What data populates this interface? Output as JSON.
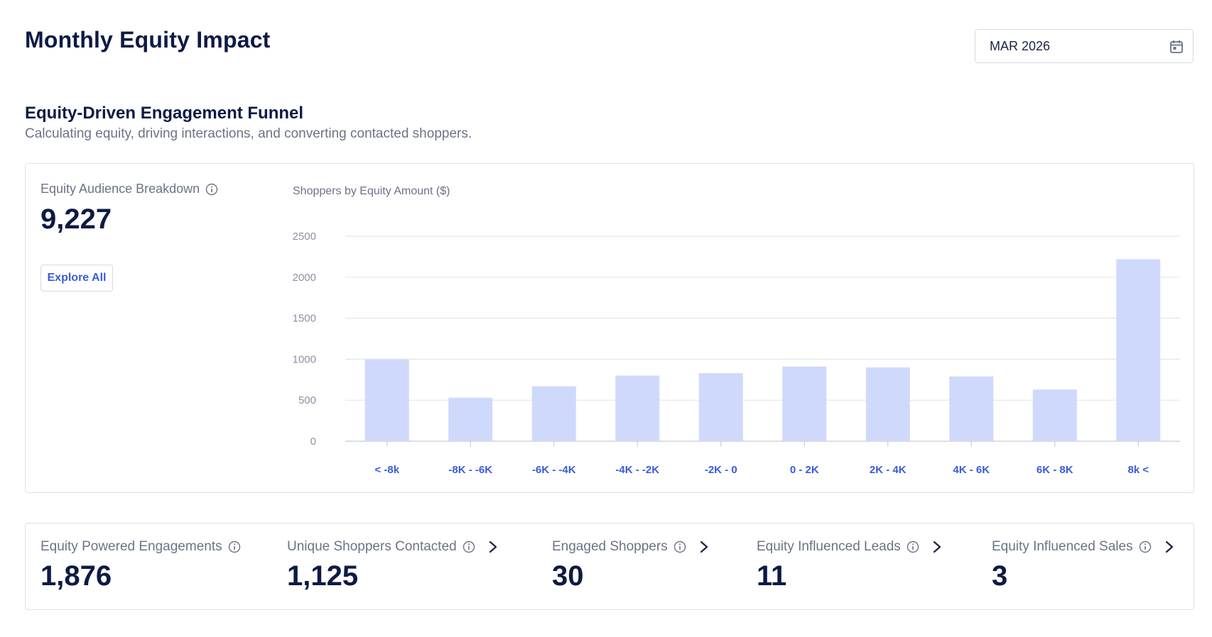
{
  "page": {
    "title": "Monthly Equity Impact",
    "month_value": "MAR 2026"
  },
  "funnel": {
    "title": "Equity-Driven Engagement Funnel",
    "subtitle": "Calculating equity, driving interactions, and converting contacted shoppers."
  },
  "audience": {
    "label": "Equity Audience Breakdown",
    "value": "9,227",
    "explore_label": "Explore All"
  },
  "chart_data": {
    "type": "bar",
    "title": "Shoppers by Equity Amount ($)",
    "categories": [
      "< -8k",
      "-8K - -6K",
      "-6K - -4K",
      "-4K - -2K",
      "-2K - 0",
      "0 - 2K",
      "2K - 4K",
      "4K - 6K",
      "6K - 8K",
      "8k <"
    ],
    "values": [
      1000,
      530,
      670,
      800,
      830,
      910,
      900,
      790,
      630,
      2220
    ],
    "ylim": [
      0,
      2500
    ],
    "yticks": [
      "0",
      "500",
      "1000",
      "1500",
      "2000",
      "2500"
    ],
    "grid": true,
    "bar_color": "#cfd9fb",
    "xtick_color": "#3b5bd9"
  },
  "metrics": [
    {
      "label": "Equity Powered Engagements",
      "value": "1,876",
      "has_arrow": false
    },
    {
      "label": "Unique Shoppers Contacted",
      "value": "1,125",
      "has_arrow": true
    },
    {
      "label": "Engaged Shoppers",
      "value": "30",
      "has_arrow": true
    },
    {
      "label": "Equity Influenced Leads",
      "value": "11",
      "has_arrow": true
    },
    {
      "label": "Equity Influenced Sales",
      "value": "3",
      "has_arrow": true
    }
  ]
}
